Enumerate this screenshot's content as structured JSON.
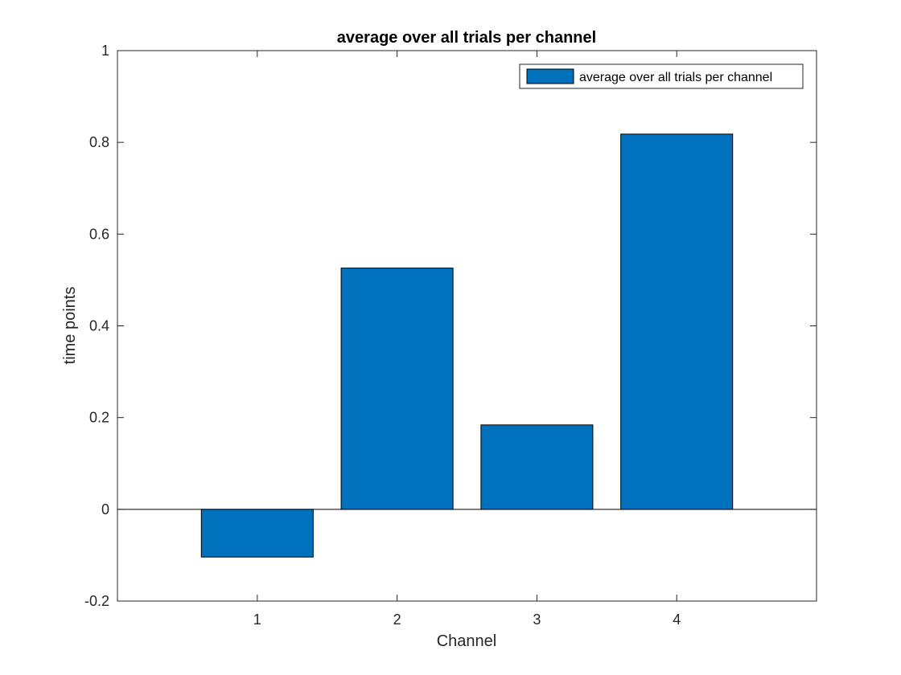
{
  "chart_data": {
    "type": "bar",
    "title": "average over all trials per channel",
    "xlabel": "Channel",
    "ylabel": "time points",
    "categories": [
      "1",
      "2",
      "3",
      "4"
    ],
    "series": [
      {
        "name": "average over all trials per channel",
        "values": [
          -0.104,
          0.526,
          0.184,
          0.818
        ],
        "color": "#0072BD"
      }
    ],
    "xlim": [
      0,
      5
    ],
    "ylim": [
      -0.2,
      1
    ],
    "yticks": [
      -0.2,
      0,
      0.2,
      0.4,
      0.6,
      0.8,
      1
    ],
    "ytick_labels": [
      "-0.2",
      "0",
      "0.2",
      "0.4",
      "0.6",
      "0.8",
      "1"
    ],
    "grid": false,
    "legend_position": "top-right"
  }
}
